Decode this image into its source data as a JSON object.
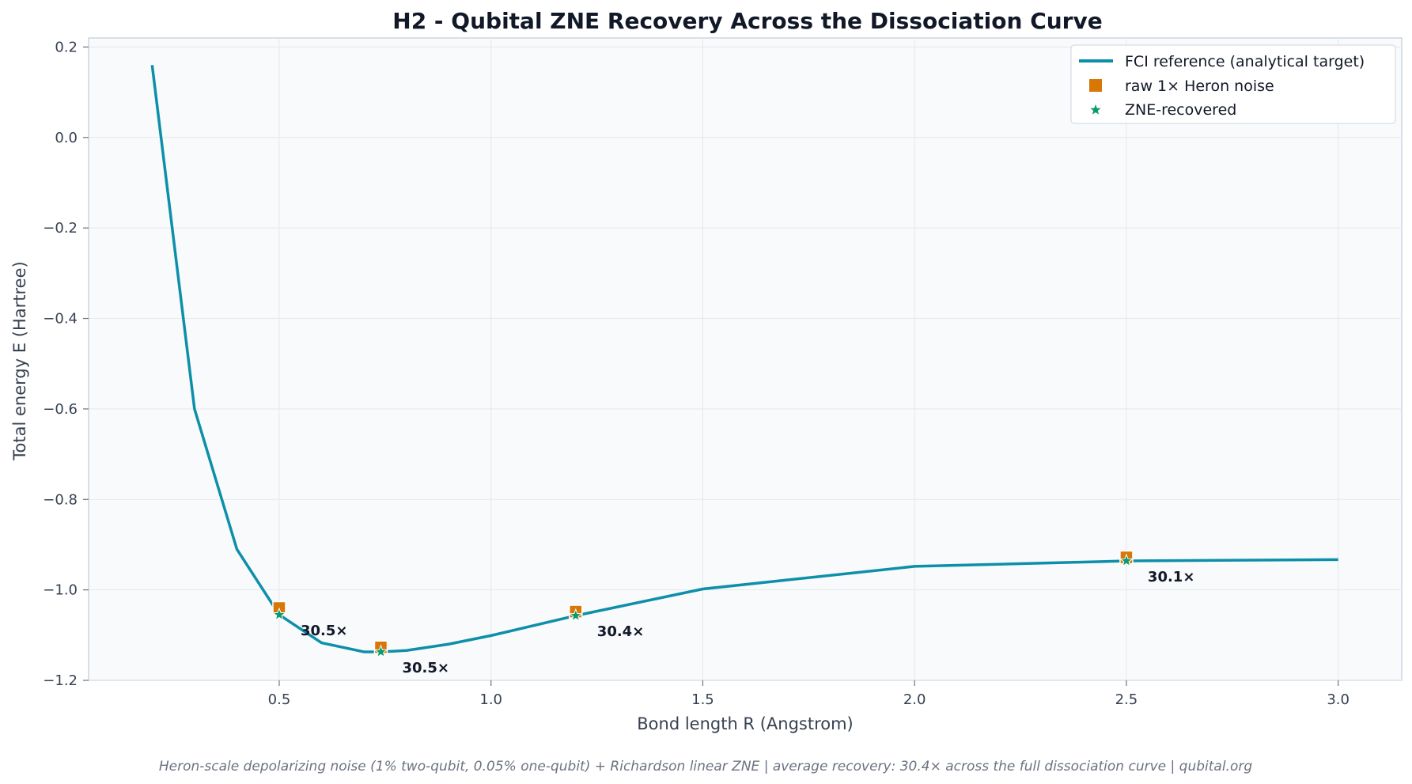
{
  "chart_data": {
    "type": "line",
    "title": "H2 - Qubital ZNE Recovery Across the Dissociation Curve",
    "xlabel": "Bond length R (Angstrom)",
    "ylabel": "Total energy E (Hartree)",
    "xlim": [
      0.05,
      3.15
    ],
    "ylim": [
      -1.2,
      0.22
    ],
    "xticks": [
      0.5,
      1.0,
      1.5,
      2.0,
      2.5,
      3.0
    ],
    "xtick_labels": [
      "0.5",
      "1.0",
      "1.5",
      "2.0",
      "2.5",
      "3.0"
    ],
    "yticks": [
      0.2,
      0.0,
      -0.2,
      -0.4,
      -0.6,
      -0.8,
      -1.0,
      -1.2
    ],
    "ytick_labels": [
      "0.2",
      "0.0",
      "−0.2",
      "−0.4",
      "−0.6",
      "−0.8",
      "−1.0",
      "−1.2"
    ],
    "grid": true,
    "legend_position": "top-right",
    "series": [
      {
        "name": "FCI reference (analytical target)",
        "kind": "line",
        "color": "#0e8fa9",
        "x": [
          0.2,
          0.3,
          0.4,
          0.5,
          0.6,
          0.7,
          0.74,
          0.8,
          0.9,
          1.0,
          1.2,
          1.5,
          2.0,
          2.5,
          3.0
        ],
        "y": [
          0.16,
          -0.6,
          -0.91,
          -1.055,
          -1.117,
          -1.137,
          -1.137,
          -1.134,
          -1.12,
          -1.101,
          -1.057,
          -0.998,
          -0.948,
          -0.936,
          -0.933
        ]
      },
      {
        "name": "raw 1× Heron noise",
        "kind": "square",
        "color": "#d97706",
        "x": [
          0.5,
          0.74,
          1.2,
          2.5
        ],
        "y": [
          -1.04,
          -1.127,
          -1.048,
          -0.928
        ]
      },
      {
        "name": "ZNE-recovered",
        "kind": "star",
        "color": "#0a9a6e",
        "x": [
          0.5,
          0.74,
          1.2,
          2.5
        ],
        "y": [
          -1.055,
          -1.137,
          -1.057,
          -0.936
        ]
      }
    ],
    "annotations": [
      {
        "x": 0.5,
        "y": -1.055,
        "text": "30.5×"
      },
      {
        "x": 0.74,
        "y": -1.137,
        "text": "30.5×"
      },
      {
        "x": 1.2,
        "y": -1.057,
        "text": "30.4×"
      },
      {
        "x": 2.5,
        "y": -0.936,
        "text": "30.1×"
      }
    ]
  },
  "footer": "Heron-scale depolarizing noise (1% two-qubit, 0.05% one-qubit) + Richardson linear ZNE  |  average recovery: 30.4× across the full dissociation curve  |  qubital.org",
  "colors": {
    "plot_background": "#f8fafc",
    "axes_edge": "#cbd5e1",
    "grid": "#e5e7eb"
  }
}
